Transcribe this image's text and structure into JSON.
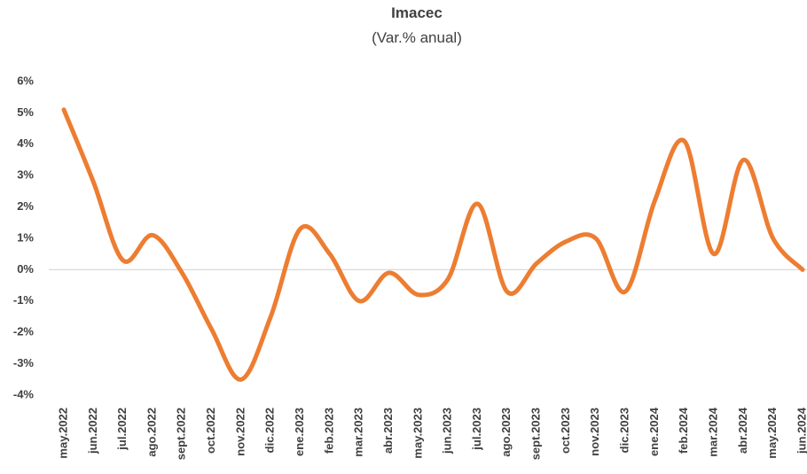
{
  "chart_data": {
    "type": "line",
    "title": "Imacec",
    "subtitle": "(Var.% anual)",
    "categories": [
      "may.2022",
      "jun.2022",
      "jul.2022",
      "ago.2022",
      "sept.2022",
      "oct.2022",
      "nov.2022",
      "dic.2022",
      "ene.2023",
      "feb.2023",
      "mar.2023",
      "abr.2023",
      "may.2023",
      "jun.2023",
      "jul.2023",
      "ago.2023",
      "sept.2023",
      "oct.2023",
      "nov.2023",
      "dic.2023",
      "ene.2024",
      "feb.2024",
      "mar.2024",
      "abr.2024",
      "may.2024",
      "jun.2024"
    ],
    "series": [
      {
        "name": "Imacec",
        "color": "#ed7d31",
        "values": [
          5.1,
          2.8,
          0.3,
          1.1,
          -0.1,
          -1.9,
          -3.5,
          -1.5,
          1.3,
          0.5,
          -1.0,
          -0.1,
          -0.8,
          -0.3,
          2.1,
          -0.7,
          0.2,
          0.9,
          1.0,
          -0.7,
          2.2,
          4.1,
          0.5,
          3.5,
          1.0,
          0.0
        ]
      }
    ],
    "ylim": [
      -4,
      6
    ],
    "yticks": [
      {
        "value": -4,
        "label": "-4%"
      },
      {
        "value": -3,
        "label": "-3%"
      },
      {
        "value": -2,
        "label": "-2%"
      },
      {
        "value": -1,
        "label": "-1%"
      },
      {
        "value": 0,
        "label": "0%"
      },
      {
        "value": 1,
        "label": "1%"
      },
      {
        "value": 2,
        "label": "2%"
      },
      {
        "value": 3,
        "label": "3%"
      },
      {
        "value": 4,
        "label": "4%"
      },
      {
        "value": 5,
        "label": "5%"
      },
      {
        "value": 6,
        "label": "6%"
      }
    ],
    "zero_line": true
  }
}
